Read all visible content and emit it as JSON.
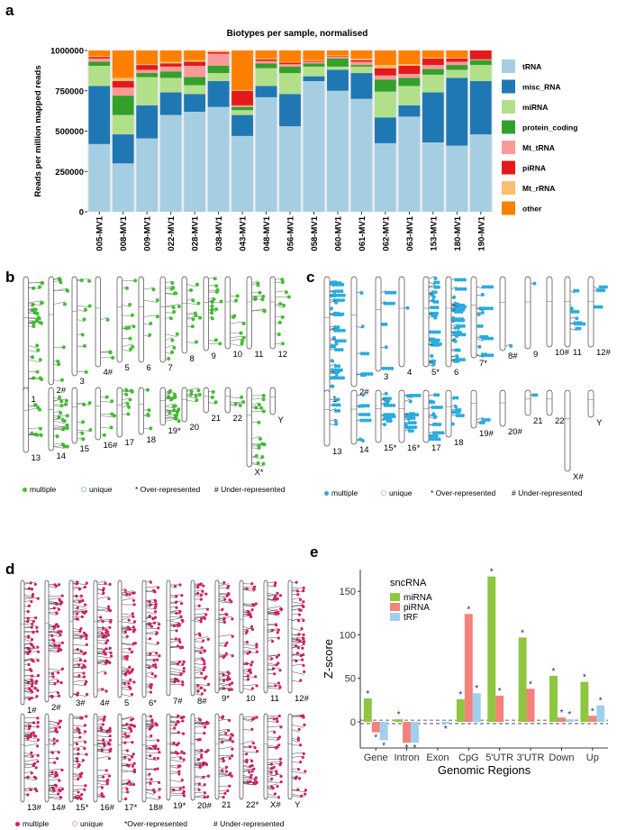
{
  "panels": {
    "a": "a",
    "b": "b",
    "c": "c",
    "d": "d",
    "e": "e"
  },
  "chart_data": [
    {
      "type": "bar",
      "stacked": true,
      "title": "Biotypes per sample, normalised",
      "ylabel": "Reads per million mapped reads",
      "xlabel": "",
      "ylim": [
        0,
        1000000
      ],
      "yticks": [
        "0",
        "250000",
        "500000",
        "750000",
        "1000000"
      ],
      "categories": [
        "005-MV1",
        "008-MV1",
        "009-MV1",
        "022-MV1",
        "028-MV1",
        "038-MV1",
        "043-MV1",
        "048-MV1",
        "056-MV1",
        "058-MV1",
        "060-MV1",
        "061-MV1",
        "062-MV1",
        "063-MV1",
        "153-MV1",
        "180-MV1",
        "190-MV1"
      ],
      "series": [
        {
          "name": "tRNA",
          "color": "#a6cee3",
          "values": [
            420000,
            300000,
            455000,
            600000,
            620000,
            650000,
            470000,
            710000,
            530000,
            810000,
            750000,
            700000,
            425000,
            590000,
            430000,
            410000,
            480000
          ]
        },
        {
          "name": "misc_RNA",
          "color": "#1f78b4",
          "values": [
            360000,
            180000,
            205000,
            140000,
            110000,
            160000,
            130000,
            70000,
            200000,
            30000,
            130000,
            160000,
            160000,
            70000,
            310000,
            420000,
            330000
          ]
        },
        {
          "name": "miRNA",
          "color": "#b2df8a",
          "values": [
            125000,
            120000,
            175000,
            90000,
            55000,
            50000,
            30000,
            110000,
            130000,
            60000,
            20000,
            40000,
            160000,
            120000,
            110000,
            50000,
            100000
          ]
        },
        {
          "name": "protein_coding",
          "color": "#33a02c",
          "values": [
            25000,
            120000,
            25000,
            40000,
            50000,
            45000,
            20000,
            30000,
            40000,
            20000,
            50000,
            10000,
            75000,
            50000,
            35000,
            30000,
            30000
          ]
        },
        {
          "name": "Mt_tRNA",
          "color": "#fb9a99",
          "values": [
            20000,
            50000,
            20000,
            30000,
            70000,
            75000,
            10000,
            15000,
            15000,
            10000,
            10000,
            20000,
            25000,
            25000,
            25000,
            20000,
            5000
          ]
        },
        {
          "name": "piRNA",
          "color": "#e31a1c",
          "values": [
            10000,
            40000,
            30000,
            20000,
            25000,
            10000,
            90000,
            10000,
            10000,
            5000,
            5000,
            10000,
            45000,
            50000,
            40000,
            20000,
            55000
          ]
        },
        {
          "name": "Mt_rRNA",
          "color": "#fdbf6f",
          "values": [
            5000,
            20000,
            5000,
            10000,
            10000,
            10000,
            5000,
            5000,
            5000,
            5000,
            5000,
            10000,
            20000,
            10000,
            5000,
            5000,
            0
          ]
        },
        {
          "name": "other",
          "color": "#ff7f00",
          "values": [
            35000,
            170000,
            85000,
            70000,
            60000,
            0,
            245000,
            50000,
            70000,
            60000,
            30000,
            50000,
            90000,
            85000,
            45000,
            45000,
            0
          ]
        }
      ],
      "legend_position": "right"
    },
    {
      "type": "bar",
      "grouped": true,
      "ylabel": "Z-score",
      "xlabel": "Genomic Regions",
      "ylim": [
        -30,
        175
      ],
      "yticks": [
        "0",
        "50",
        "100",
        "150"
      ],
      "legend_title": "sncRNA",
      "categories": [
        "Gene",
        "Intron",
        "Exon",
        "CpG",
        "5'UTR",
        "3'UTR",
        "Down",
        "Up"
      ],
      "series": [
        {
          "name": "miRNA",
          "color": "#8dc63f",
          "values": [
            27,
            3,
            0,
            26,
            167,
            97,
            53,
            46
          ]
        },
        {
          "name": "piRNA",
          "color": "#f4817a",
          "values": [
            -12,
            -24,
            0,
            124,
            30,
            38,
            5,
            7
          ]
        },
        {
          "name": "tRF",
          "color": "#9fcfee",
          "values": [
            -21,
            -24,
            -2,
            33,
            0,
            0,
            3,
            19
          ]
        }
      ],
      "significance_mark": "*"
    }
  ],
  "karyotype_b": {
    "color": "#3fbf2f",
    "row1": [
      "1",
      "2#",
      "3",
      "4#",
      "5",
      "6",
      "7",
      "8",
      "9",
      "10",
      "11",
      "12"
    ],
    "row2": [
      "13",
      "14",
      "15",
      "16#",
      "17",
      "18",
      "19*",
      "20",
      "21",
      "22",
      "X*",
      "Y"
    ],
    "legend": {
      "multiple": "multiple",
      "unique": "unique",
      "over": "* Over-represented",
      "under": "# Under-represented"
    }
  },
  "karyotype_c": {
    "color": "#29abe2",
    "row1": [
      "1",
      "2#",
      "3",
      "4",
      "5*",
      "6",
      "7*",
      "8#",
      "9",
      "10#",
      "11",
      "12#"
    ],
    "row2": [
      "13",
      "14",
      "15*",
      "16*",
      "17",
      "18",
      "19#",
      "20#",
      "21",
      "22",
      "X#",
      "Y"
    ],
    "legend": {
      "multiple": "multiple",
      "unique": "unique",
      "over": "* Over-represented",
      "under": "# Under-represented"
    }
  },
  "karyotype_d": {
    "color": "#d81b60",
    "row1": [
      "1#",
      "2#",
      "3#",
      "4#",
      "5",
      "6*",
      "7#",
      "8#",
      "9*",
      "10",
      "11",
      "12#"
    ],
    "row2": [
      "13#",
      "14#",
      "15*",
      "16#",
      "17*",
      "18#",
      "19*",
      "20#",
      "21",
      "22*",
      "X#",
      "Y"
    ],
    "legend": {
      "multiple": "multiple",
      "unique": "unique",
      "over": "*Over-represented",
      "under": "# Under-represented"
    }
  }
}
